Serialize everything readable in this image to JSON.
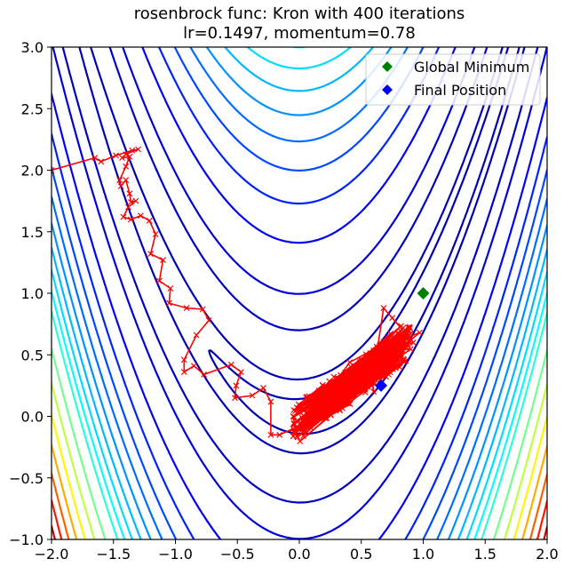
{
  "chart_data": {
    "type": "line",
    "title_line1": "rosenbrock func: Kron with 400 iterations",
    "title_line2": "lr=0.1497, momentum=0.78",
    "xlim": [
      -2.0,
      2.0
    ],
    "ylim": [
      -1.0,
      3.0
    ],
    "xticks": [
      "−2.0",
      "−1.5",
      "−1.0",
      "−0.5",
      "0.0",
      "0.5",
      "1.0",
      "1.5",
      "2.0"
    ],
    "yticks": [
      "−1.0",
      "−0.5",
      "0.0",
      "0.5",
      "1.0",
      "1.5",
      "2.0",
      "2.5",
      "3.0"
    ],
    "grid": false,
    "legend_position": "top-right",
    "legend": [
      {
        "label": "Global Minimum",
        "color": "#008000",
        "marker": "diamond"
      },
      {
        "label": "Final Position",
        "color": "#0000ff",
        "marker": "diamond"
      }
    ],
    "contour_function": "rosenbrock",
    "contour_levels": [
      3,
      10,
      50,
      100,
      200,
      300,
      400,
      500,
      600,
      700,
      800,
      900,
      1000,
      1200,
      1400,
      1600,
      1800,
      2000,
      2200,
      2400,
      2600
    ],
    "contour_colormap": "jet",
    "global_minimum": {
      "x": 1.0,
      "y": 1.0
    },
    "final_position": {
      "x": 0.66,
      "y": 0.25
    },
    "path_color": "#ff0000",
    "path_marker": "x",
    "path_head": [
      [
        -2.0,
        2.0
      ],
      [
        -1.65,
        2.1
      ],
      [
        -1.6,
        2.07
      ],
      [
        -1.48,
        2.12
      ],
      [
        -1.35,
        2.16
      ],
      [
        -1.3,
        2.17
      ],
      [
        -1.4,
        2.13
      ],
      [
        -1.43,
        2.1
      ],
      [
        -1.37,
        2.11
      ],
      [
        -1.4,
        2.03
      ],
      [
        -1.45,
        1.92
      ],
      [
        -1.44,
        1.87
      ],
      [
        -1.4,
        1.92
      ],
      [
        -1.37,
        1.81
      ],
      [
        -1.36,
        1.74
      ],
      [
        -1.32,
        1.75
      ],
      [
        -1.38,
        1.7
      ],
      [
        -1.42,
        1.62
      ],
      [
        -1.36,
        1.6
      ],
      [
        -1.28,
        1.63
      ],
      [
        -1.21,
        1.59
      ],
      [
        -1.16,
        1.48
      ],
      [
        -1.2,
        1.32
      ],
      [
        -1.1,
        1.27
      ],
      [
        -1.13,
        1.1
      ],
      [
        -1.04,
        1.04
      ],
      [
        -1.05,
        0.92
      ],
      [
        -0.91,
        0.88
      ],
      [
        -0.78,
        0.87
      ],
      [
        -0.73,
        0.78
      ],
      [
        -0.83,
        0.66
      ],
      [
        -0.93,
        0.46
      ],
      [
        -0.93,
        0.36
      ],
      [
        -0.85,
        0.41
      ],
      [
        -0.77,
        0.34
      ],
      [
        -0.55,
        0.42
      ],
      [
        -0.47,
        0.36
      ],
      [
        -0.51,
        0.25
      ],
      [
        -0.52,
        0.15
      ],
      [
        -0.38,
        0.17
      ],
      [
        -0.29,
        0.23
      ],
      [
        -0.23,
        0.12
      ],
      [
        -0.23,
        -0.15
      ],
      [
        -0.16,
        -0.15
      ],
      [
        -0.05,
        -0.1
      ],
      [
        -0.02,
        -0.16
      ],
      [
        -0.05,
        0.0
      ],
      [
        0.03,
        0.05
      ],
      [
        0.12,
        0.09
      ],
      [
        0.22,
        0.11
      ],
      [
        0.32,
        0.17
      ],
      [
        0.42,
        0.2
      ],
      [
        0.52,
        0.28
      ],
      [
        0.62,
        0.36
      ],
      [
        0.72,
        0.46
      ],
      [
        0.82,
        0.55
      ],
      [
        0.9,
        0.62
      ],
      [
        0.97,
        0.68
      ],
      [
        0.78,
        0.6
      ],
      [
        0.62,
        0.48
      ],
      [
        0.68,
        0.88
      ],
      [
        0.75,
        0.8
      ],
      [
        0.92,
        0.6
      ],
      [
        0.55,
        0.48
      ],
      [
        0.6,
        0.2
      ]
    ],
    "path_random_points": 330,
    "path_random_seed": 12345
  }
}
